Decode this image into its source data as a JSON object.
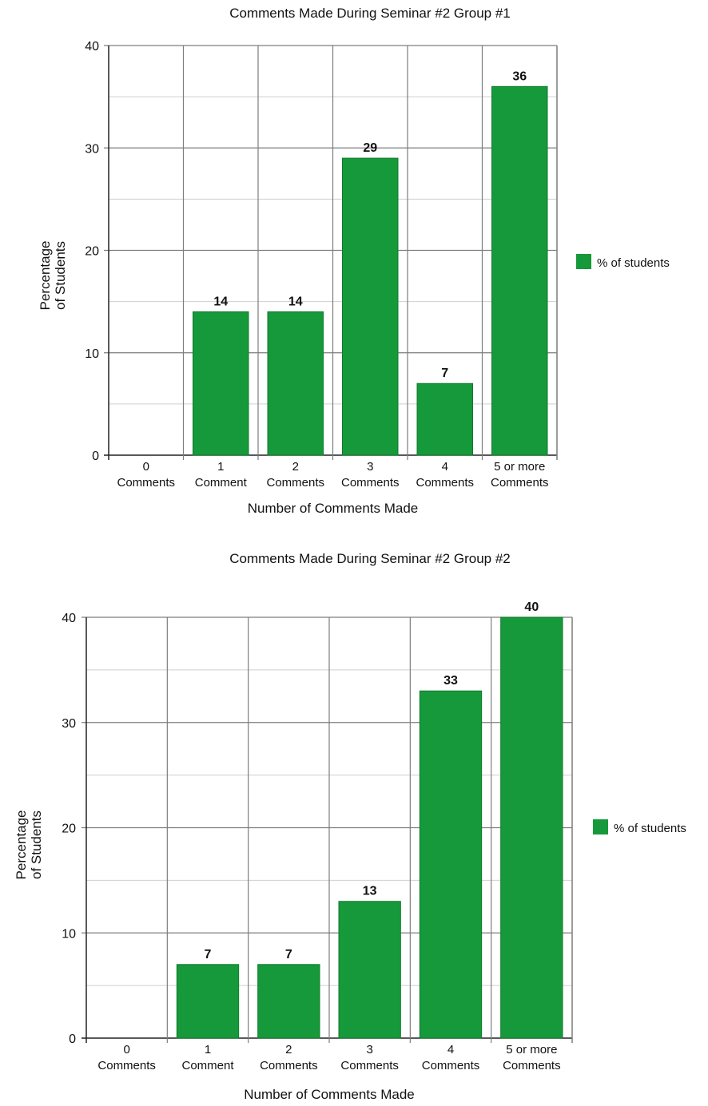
{
  "chart_data": [
    {
      "type": "bar",
      "title": "Comments Made During Seminar #2 Group #1",
      "xlabel": "Number of Comments Made",
      "ylabel": [
        "Percentage",
        "of Students"
      ],
      "categories": [
        [
          "0",
          "Comments"
        ],
        [
          "1",
          "Comment"
        ],
        [
          "2",
          "Comments"
        ],
        [
          "3",
          "Comments"
        ],
        [
          "4",
          "Comments"
        ],
        [
          "5 or more",
          "Comments"
        ]
      ],
      "series": [
        {
          "name": "% of students",
          "values": [
            0,
            14,
            14,
            29,
            7,
            36
          ],
          "color": "#16993a"
        }
      ],
      "data_labels": [
        "",
        "14",
        "14",
        "29",
        "7",
        "36"
      ],
      "ylim": [
        0,
        40
      ],
      "yticks": [
        "0",
        "10",
        "20",
        "30",
        "40"
      ],
      "grid": true,
      "legend_position": "right"
    },
    {
      "type": "bar",
      "title": "Comments Made During Seminar #2 Group #2",
      "xlabel": "Number of Comments Made",
      "ylabel": [
        "Percentage",
        "of Students"
      ],
      "categories": [
        [
          "0",
          "Comments"
        ],
        [
          "1",
          "Comment"
        ],
        [
          "2",
          "Comments"
        ],
        [
          "3",
          "Comments"
        ],
        [
          "4",
          "Comments"
        ],
        [
          "5 or more",
          "Comments"
        ]
      ],
      "series": [
        {
          "name": "% of students",
          "values": [
            0,
            7,
            7,
            13,
            33,
            40
          ],
          "color": "#16993a"
        }
      ],
      "data_labels": [
        "",
        "7",
        "7",
        "13",
        "33",
        "40"
      ],
      "ylim": [
        0,
        40
      ],
      "yticks": [
        "0",
        "10",
        "20",
        "30",
        "40"
      ],
      "grid": true,
      "legend_position": "right"
    }
  ]
}
